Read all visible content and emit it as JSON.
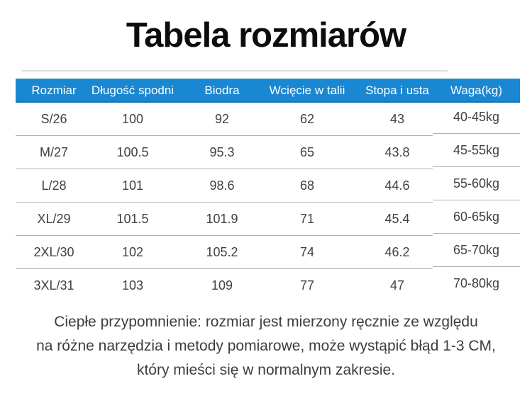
{
  "title": "Tabela rozmiarów",
  "colors": {
    "accent_blue": "#1a87d2",
    "header_text": "#ffffff",
    "body_text": "#414141",
    "divider": "#b0b0b0",
    "title_text": "#0d0d0d"
  },
  "chart_data": {
    "type": "table",
    "title": "Tabela rozmiarów",
    "columns": [
      "Rozmiar",
      "Długość spodni",
      "Biodra",
      "Wcięcie w talii",
      "Stopa i usta",
      "Waga(kg)"
    ],
    "rows": [
      [
        "S/26",
        "100",
        "92",
        "62",
        "43",
        "40-45kg"
      ],
      [
        "M/27",
        "100.5",
        "95.3",
        "65",
        "43.8",
        "45-55kg"
      ],
      [
        "L/28",
        "101",
        "98.6",
        "68",
        "44.6",
        "55-60kg"
      ],
      [
        "XL/29",
        "101.5",
        "101.9",
        "71",
        "45.4",
        "60-65kg"
      ],
      [
        "2XL/30",
        "102",
        "105.2",
        "74",
        "46.2",
        "65-70kg"
      ],
      [
        "3XL/31",
        "103",
        "109",
        "77",
        "47",
        "70-80kg"
      ]
    ],
    "note": "Ciepłe przypomnienie: rozmiar jest mierzony ręcznie ze względu na różne narzędzia i metody pomiarowe, może wystąpić błąd 1-3 CM, który mieści się w normalnym zakresie."
  },
  "note_lines": [
    "Ciepłe przypomnienie: rozmiar jest mierzony ręcznie ze względu",
    "na różne narzędzia i metody pomiarowe, może wystąpić błąd 1-3 CM,",
    "który mieści się w normalnym zakresie."
  ]
}
